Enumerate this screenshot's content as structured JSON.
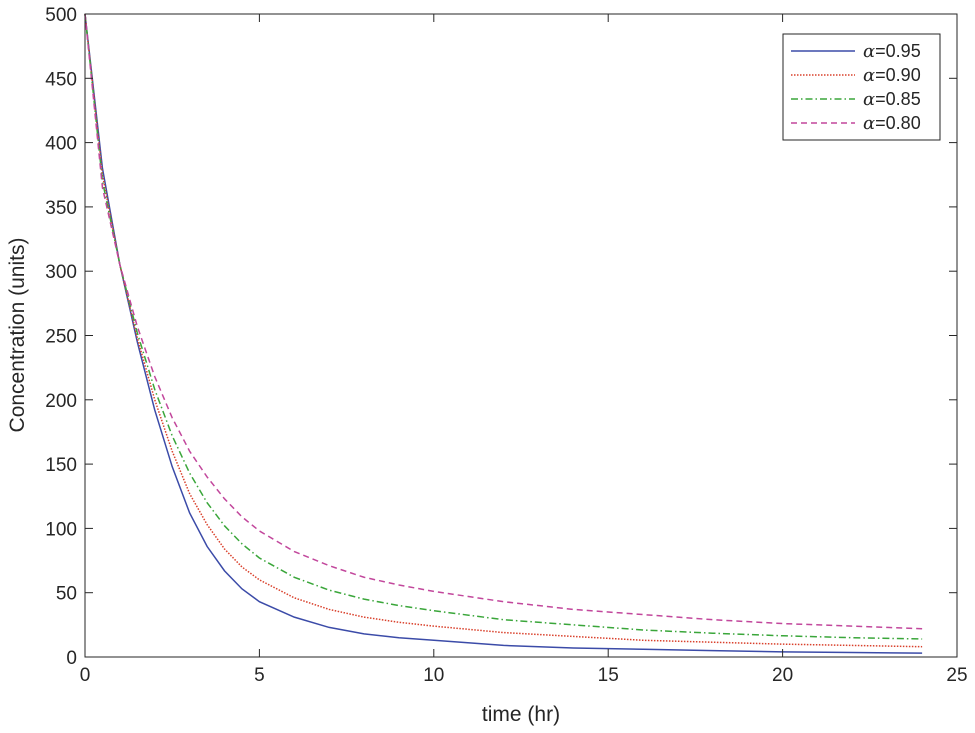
{
  "chart_data": {
    "type": "line",
    "xlabel": "time (hr)",
    "ylabel": "Concentration (units)",
    "xlim": [
      0,
      25
    ],
    "ylim": [
      0,
      500
    ],
    "xticks": [
      0,
      5,
      10,
      15,
      20,
      25
    ],
    "yticks": [
      0,
      50,
      100,
      150,
      200,
      250,
      300,
      350,
      400,
      450,
      500
    ],
    "grid": false,
    "legend_position": "top-right",
    "series": [
      {
        "name": "α=0.95",
        "legend_symbol": "α",
        "legend_value": "=0.95",
        "color": "#3b4ba8",
        "dash": "solid",
        "x": [
          0,
          0.5,
          1,
          1.5,
          2,
          2.5,
          3,
          3.5,
          4,
          4.5,
          5,
          6,
          7,
          8,
          9,
          10,
          12,
          14,
          16,
          18,
          20,
          22,
          24
        ],
        "y": [
          500,
          380,
          305,
          245,
          192,
          148,
          112,
          86,
          67,
          53,
          43,
          31,
          23,
          18,
          15,
          13,
          9,
          7,
          6,
          5,
          4,
          3.5,
          3
        ]
      },
      {
        "name": "α=0.90",
        "legend_symbol": "α",
        "legend_value": "=0.90",
        "color": "#d9402b",
        "dash": "dotted",
        "x": [
          0,
          0.5,
          1,
          1.5,
          2,
          2.5,
          3,
          3.5,
          4,
          4.5,
          5,
          6,
          7,
          8,
          9,
          10,
          12,
          14,
          16,
          18,
          20,
          22,
          24
        ],
        "y": [
          500,
          375,
          305,
          248,
          200,
          160,
          127,
          103,
          84,
          70,
          60,
          46,
          37,
          31,
          27,
          24,
          19,
          16,
          13,
          11.5,
          10,
          9,
          8
        ]
      },
      {
        "name": "α=0.85",
        "legend_symbol": "α",
        "legend_value": "=0.85",
        "color": "#3aa63a",
        "dash": "dashdot",
        "x": [
          0,
          0.5,
          1,
          1.5,
          2,
          2.5,
          3,
          3.5,
          4,
          4.5,
          5,
          6,
          7,
          8,
          9,
          10,
          12,
          14,
          16,
          18,
          20,
          22,
          24
        ],
        "y": [
          500,
          370,
          305,
          252,
          208,
          172,
          143,
          120,
          102,
          88,
          77,
          62,
          52,
          45,
          40,
          36,
          29,
          25,
          21,
          18.5,
          16.5,
          15,
          14
        ]
      },
      {
        "name": "α=0.80",
        "legend_symbol": "α",
        "legend_value": "=0.80",
        "color": "#c2479c",
        "dash": "dashed",
        "x": [
          0,
          0.5,
          1,
          1.5,
          2,
          2.5,
          3,
          3.5,
          4,
          4.5,
          5,
          6,
          7,
          8,
          9,
          10,
          12,
          14,
          16,
          18,
          20,
          22,
          24
        ],
        "y": [
          500,
          365,
          305,
          257,
          218,
          186,
          160,
          140,
          123,
          109,
          98,
          82,
          71,
          62,
          56,
          51,
          43,
          37,
          33,
          29,
          26,
          24,
          22
        ]
      }
    ]
  }
}
